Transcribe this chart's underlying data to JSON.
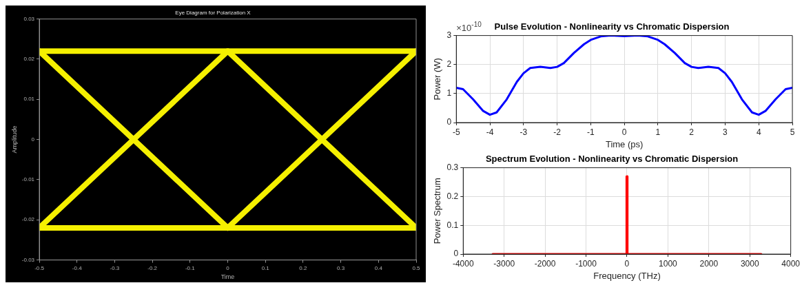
{
  "chart_data": [
    {
      "type": "line",
      "title": "Eye Diagram for Polarization X",
      "xlabel": "Time",
      "ylabel": "Amplitude",
      "xlim": [
        -0.5,
        0.5
      ],
      "xticks": [
        -0.5,
        -0.4,
        -0.3,
        -0.2,
        -0.1,
        0,
        0.1,
        0.2,
        0.3,
        0.4,
        0.5
      ],
      "ylim": [
        -0.03,
        0.03
      ],
      "yticks": [
        -0.03,
        -0.02,
        -0.01,
        0,
        0.01,
        0.02,
        0.03
      ],
      "grid": false,
      "legend": false,
      "marker": "none",
      "line_style": "solid",
      "series": [
        {
          "color": "#f5f000",
          "x": [
            -0.5,
            0.5
          ],
          "values": [
            0.022,
            0.022
          ]
        },
        {
          "color": "#f5f000",
          "x": [
            -0.5,
            0.5
          ],
          "values": [
            -0.022,
            -0.022
          ]
        },
        {
          "color": "#f5f000",
          "x": [
            -0.5,
            0
          ],
          "values": [
            0.022,
            -0.022
          ]
        },
        {
          "color": "#f5f000",
          "x": [
            -0.5,
            0
          ],
          "values": [
            -0.022,
            0.022
          ]
        },
        {
          "color": "#f5f000",
          "x": [
            0,
            0.5
          ],
          "values": [
            0.022,
            -0.022
          ]
        },
        {
          "color": "#f5f000",
          "x": [
            0,
            0.5
          ],
          "values": [
            -0.022,
            0.022
          ]
        }
      ]
    },
    {
      "type": "line",
      "title": "Pulse Evolution - Nonlinearity vs Chromatic Dispersion",
      "xlabel": "Time (ps)",
      "ylabel": "Power (W)",
      "annotations": [
        "×10$^{-10}$"
      ],
      "xlim": [
        -5,
        5
      ],
      "xticks": [
        -5,
        -4,
        -3,
        -2,
        -1,
        0,
        1,
        2,
        3,
        4,
        5
      ],
      "ylim": [
        0,
        3
      ],
      "yticks": [
        0,
        1,
        2,
        3
      ],
      "grid": true,
      "legend": false,
      "marker": "none",
      "line_style": "solid",
      "series": [
        {
          "color": "#0000ff",
          "x": [
            -5,
            -4.8,
            -4.5,
            -4.2,
            -4,
            -3.8,
            -3.5,
            -3.2,
            -3,
            -2.8,
            -2.5,
            -2.2,
            -2,
            -1.8,
            -1.5,
            -1.2,
            -1,
            -0.7,
            -0.4,
            0,
            0.4,
            0.7,
            1,
            1.2,
            1.5,
            1.8,
            2,
            2.2,
            2.5,
            2.8,
            3,
            3.2,
            3.5,
            3.8,
            4,
            4.2,
            4.5,
            4.8,
            5
          ],
          "values": [
            1.2,
            1.15,
            0.8,
            0.4,
            0.27,
            0.35,
            0.8,
            1.4,
            1.7,
            1.88,
            1.92,
            1.88,
            1.92,
            2.05,
            2.4,
            2.7,
            2.85,
            2.97,
            3.0,
            2.98,
            3.0,
            2.97,
            2.85,
            2.7,
            2.4,
            2.05,
            1.92,
            1.88,
            1.92,
            1.88,
            1.7,
            1.4,
            0.8,
            0.35,
            0.27,
            0.4,
            0.8,
            1.15,
            1.2
          ]
        }
      ]
    },
    {
      "type": "line",
      "title": "Spectrum Evolution - Nonlinearity vs Chromatic Dispersion",
      "xlabel": "Frequency (THz)",
      "ylabel": "Power Spectrum",
      "xlim": [
        -4000,
        4000
      ],
      "xticks": [
        -4000,
        -3000,
        -2000,
        -1000,
        0,
        1000,
        2000,
        3000,
        4000
      ],
      "ylim": [
        0,
        0.3
      ],
      "yticks": [
        0,
        0.1,
        0.2,
        0.3
      ],
      "grid": true,
      "legend": false,
      "marker": "none",
      "line_style": "solid",
      "series": [
        {
          "color": "#ff0000",
          "x": [
            -3280,
            -12,
            -10,
            10,
            12,
            3280
          ],
          "values": [
            0,
            0,
            0.27,
            0.27,
            0,
            0
          ]
        }
      ]
    }
  ]
}
